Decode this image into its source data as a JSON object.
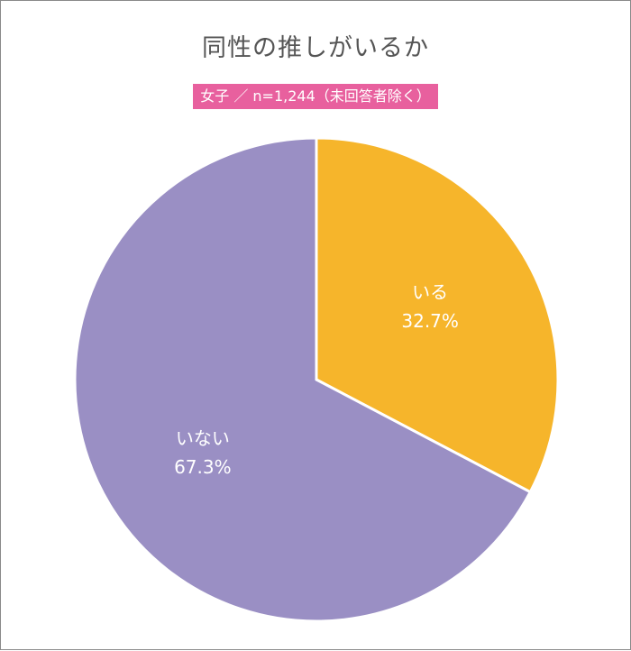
{
  "chart_data": {
    "type": "pie",
    "title": "同性の推しがいるか",
    "subtitle": "女子 ／ n=1,244（未回答者除く）",
    "slices": [
      {
        "label": "いる",
        "value": 32.7,
        "value_label": "32.7%",
        "color": "#f6b52b"
      },
      {
        "label": "いない",
        "value": 67.3,
        "value_label": "67.3%",
        "color": "#9a8fc4"
      }
    ],
    "start": "12 o'clock",
    "direction": "clockwise",
    "legend": "none"
  }
}
